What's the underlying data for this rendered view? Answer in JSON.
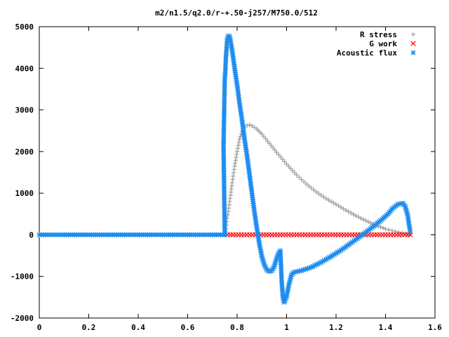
{
  "chart_data": {
    "type": "line",
    "title": "m2/n1.5/q2.0/r-+.50-j257/M750.0/512",
    "xlabel": "",
    "ylabel": "",
    "xlim": [
      0,
      1.6
    ],
    "ylim": [
      -2000,
      5000
    ],
    "x_ticks": [
      "0",
      "0.2",
      "0.4",
      "0.6",
      "0.8",
      "1",
      "1.2",
      "1.4",
      "1.6"
    ],
    "y_ticks": [
      "-2000",
      "-1000",
      "0",
      "1000",
      "2000",
      "3000",
      "4000",
      "5000"
    ],
    "legend_position": "top-right",
    "grid": false,
    "series": [
      {
        "name": "R stress",
        "marker": "plus",
        "color": "#a0a0a0",
        "points": [
          [
            0.75,
            0
          ],
          [
            0.755,
            150
          ],
          [
            0.76,
            400
          ],
          [
            0.77,
            800
          ],
          [
            0.78,
            1250
          ],
          [
            0.79,
            1650
          ],
          [
            0.8,
            2000
          ],
          [
            0.81,
            2300
          ],
          [
            0.82,
            2480
          ],
          [
            0.83,
            2580
          ],
          [
            0.84,
            2630
          ],
          [
            0.85,
            2640
          ],
          [
            0.86,
            2620
          ],
          [
            0.88,
            2540
          ],
          [
            0.9,
            2420
          ],
          [
            0.93,
            2200
          ],
          [
            0.96,
            1980
          ],
          [
            1.0,
            1700
          ],
          [
            1.04,
            1440
          ],
          [
            1.08,
            1220
          ],
          [
            1.12,
            1030
          ],
          [
            1.16,
            870
          ],
          [
            1.2,
            730
          ],
          [
            1.24,
            590
          ],
          [
            1.28,
            460
          ],
          [
            1.32,
            340
          ],
          [
            1.36,
            230
          ],
          [
            1.4,
            140
          ],
          [
            1.44,
            80
          ],
          [
            1.48,
            30
          ],
          [
            1.5,
            10
          ]
        ]
      },
      {
        "name": "G work",
        "marker": "cross",
        "color": "#ff0000",
        "points": [
          [
            0.75,
            0
          ],
          [
            1.5,
            0
          ]
        ]
      },
      {
        "name": "Acoustic flux",
        "marker": "star",
        "color": "#1e8cf0",
        "points": [
          [
            0.0,
            0
          ],
          [
            0.75,
            0
          ],
          [
            0.745,
            2150
          ],
          [
            0.75,
            3750
          ],
          [
            0.752,
            3900
          ],
          [
            0.755,
            4300
          ],
          [
            0.76,
            4700
          ],
          [
            0.765,
            4780
          ],
          [
            0.77,
            4760
          ],
          [
            0.775,
            4600
          ],
          [
            0.78,
            4420
          ],
          [
            0.79,
            4000
          ],
          [
            0.8,
            3600
          ],
          [
            0.81,
            3150
          ],
          [
            0.82,
            2750
          ],
          [
            0.83,
            2300
          ],
          [
            0.84,
            1900
          ],
          [
            0.85,
            1450
          ],
          [
            0.86,
            1000
          ],
          [
            0.87,
            550
          ],
          [
            0.88,
            150
          ],
          [
            0.89,
            -220
          ],
          [
            0.9,
            -520
          ],
          [
            0.91,
            -720
          ],
          [
            0.92,
            -840
          ],
          [
            0.93,
            -880
          ],
          [
            0.94,
            -860
          ],
          [
            0.95,
            -760
          ],
          [
            0.96,
            -560
          ],
          [
            0.97,
            -420
          ],
          [
            0.975,
            -380
          ],
          [
            0.98,
            -1100
          ],
          [
            0.985,
            -1500
          ],
          [
            0.99,
            -1620
          ],
          [
            1.0,
            -1480
          ],
          [
            1.01,
            -1180
          ],
          [
            1.02,
            -960
          ],
          [
            1.03,
            -900
          ],
          [
            1.06,
            -860
          ],
          [
            1.1,
            -780
          ],
          [
            1.14,
            -660
          ],
          [
            1.18,
            -520
          ],
          [
            1.22,
            -370
          ],
          [
            1.26,
            -200
          ],
          [
            1.3,
            -30
          ],
          [
            1.34,
            150
          ],
          [
            1.38,
            340
          ],
          [
            1.41,
            500
          ],
          [
            1.43,
            640
          ],
          [
            1.45,
            730
          ],
          [
            1.47,
            760
          ],
          [
            1.48,
            680
          ],
          [
            1.49,
            460
          ],
          [
            1.495,
            250
          ],
          [
            1.5,
            80
          ]
        ]
      }
    ]
  }
}
